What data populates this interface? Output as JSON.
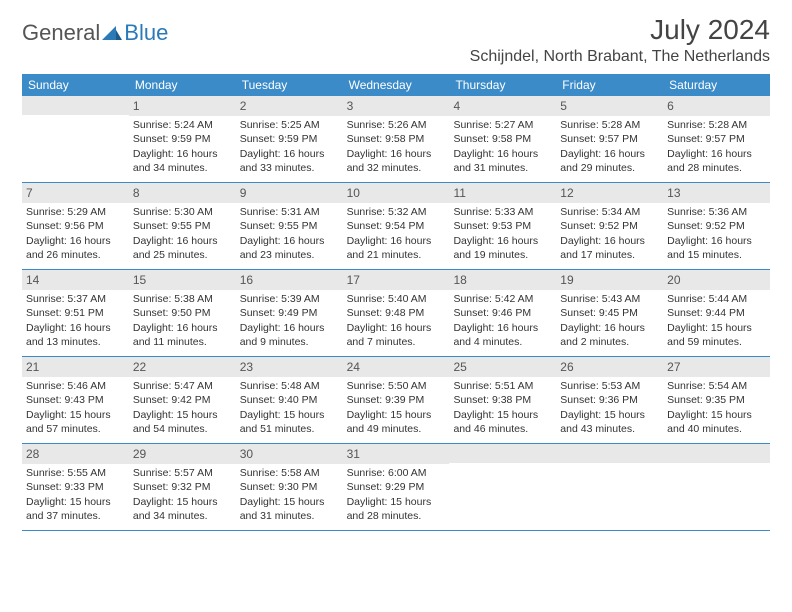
{
  "logo": {
    "general": "General",
    "blue": "Blue"
  },
  "title": {
    "monthYear": "July 2024",
    "location": "Schijndel, North Brabant, The Netherlands"
  },
  "colors": {
    "headerBg": "#3b8bc9",
    "headerText": "#ffffff",
    "dayBarBg": "#e8e8e8",
    "text": "#333333",
    "logoGray": "#555555",
    "logoBlue": "#2a7ab8",
    "border": "#3b8bc9"
  },
  "dayNames": [
    "Sunday",
    "Monday",
    "Tuesday",
    "Wednesday",
    "Thursday",
    "Friday",
    "Saturday"
  ],
  "weeks": [
    [
      {
        "day": "",
        "sunrise": "",
        "sunset": "",
        "daylight": ""
      },
      {
        "day": "1",
        "sunrise": "Sunrise: 5:24 AM",
        "sunset": "Sunset: 9:59 PM",
        "daylight": "Daylight: 16 hours and 34 minutes."
      },
      {
        "day": "2",
        "sunrise": "Sunrise: 5:25 AM",
        "sunset": "Sunset: 9:59 PM",
        "daylight": "Daylight: 16 hours and 33 minutes."
      },
      {
        "day": "3",
        "sunrise": "Sunrise: 5:26 AM",
        "sunset": "Sunset: 9:58 PM",
        "daylight": "Daylight: 16 hours and 32 minutes."
      },
      {
        "day": "4",
        "sunrise": "Sunrise: 5:27 AM",
        "sunset": "Sunset: 9:58 PM",
        "daylight": "Daylight: 16 hours and 31 minutes."
      },
      {
        "day": "5",
        "sunrise": "Sunrise: 5:28 AM",
        "sunset": "Sunset: 9:57 PM",
        "daylight": "Daylight: 16 hours and 29 minutes."
      },
      {
        "day": "6",
        "sunrise": "Sunrise: 5:28 AM",
        "sunset": "Sunset: 9:57 PM",
        "daylight": "Daylight: 16 hours and 28 minutes."
      }
    ],
    [
      {
        "day": "7",
        "sunrise": "Sunrise: 5:29 AM",
        "sunset": "Sunset: 9:56 PM",
        "daylight": "Daylight: 16 hours and 26 minutes."
      },
      {
        "day": "8",
        "sunrise": "Sunrise: 5:30 AM",
        "sunset": "Sunset: 9:55 PM",
        "daylight": "Daylight: 16 hours and 25 minutes."
      },
      {
        "day": "9",
        "sunrise": "Sunrise: 5:31 AM",
        "sunset": "Sunset: 9:55 PM",
        "daylight": "Daylight: 16 hours and 23 minutes."
      },
      {
        "day": "10",
        "sunrise": "Sunrise: 5:32 AM",
        "sunset": "Sunset: 9:54 PM",
        "daylight": "Daylight: 16 hours and 21 minutes."
      },
      {
        "day": "11",
        "sunrise": "Sunrise: 5:33 AM",
        "sunset": "Sunset: 9:53 PM",
        "daylight": "Daylight: 16 hours and 19 minutes."
      },
      {
        "day": "12",
        "sunrise": "Sunrise: 5:34 AM",
        "sunset": "Sunset: 9:52 PM",
        "daylight": "Daylight: 16 hours and 17 minutes."
      },
      {
        "day": "13",
        "sunrise": "Sunrise: 5:36 AM",
        "sunset": "Sunset: 9:52 PM",
        "daylight": "Daylight: 16 hours and 15 minutes."
      }
    ],
    [
      {
        "day": "14",
        "sunrise": "Sunrise: 5:37 AM",
        "sunset": "Sunset: 9:51 PM",
        "daylight": "Daylight: 16 hours and 13 minutes."
      },
      {
        "day": "15",
        "sunrise": "Sunrise: 5:38 AM",
        "sunset": "Sunset: 9:50 PM",
        "daylight": "Daylight: 16 hours and 11 minutes."
      },
      {
        "day": "16",
        "sunrise": "Sunrise: 5:39 AM",
        "sunset": "Sunset: 9:49 PM",
        "daylight": "Daylight: 16 hours and 9 minutes."
      },
      {
        "day": "17",
        "sunrise": "Sunrise: 5:40 AM",
        "sunset": "Sunset: 9:48 PM",
        "daylight": "Daylight: 16 hours and 7 minutes."
      },
      {
        "day": "18",
        "sunrise": "Sunrise: 5:42 AM",
        "sunset": "Sunset: 9:46 PM",
        "daylight": "Daylight: 16 hours and 4 minutes."
      },
      {
        "day": "19",
        "sunrise": "Sunrise: 5:43 AM",
        "sunset": "Sunset: 9:45 PM",
        "daylight": "Daylight: 16 hours and 2 minutes."
      },
      {
        "day": "20",
        "sunrise": "Sunrise: 5:44 AM",
        "sunset": "Sunset: 9:44 PM",
        "daylight": "Daylight: 15 hours and 59 minutes."
      }
    ],
    [
      {
        "day": "21",
        "sunrise": "Sunrise: 5:46 AM",
        "sunset": "Sunset: 9:43 PM",
        "daylight": "Daylight: 15 hours and 57 minutes."
      },
      {
        "day": "22",
        "sunrise": "Sunrise: 5:47 AM",
        "sunset": "Sunset: 9:42 PM",
        "daylight": "Daylight: 15 hours and 54 minutes."
      },
      {
        "day": "23",
        "sunrise": "Sunrise: 5:48 AM",
        "sunset": "Sunset: 9:40 PM",
        "daylight": "Daylight: 15 hours and 51 minutes."
      },
      {
        "day": "24",
        "sunrise": "Sunrise: 5:50 AM",
        "sunset": "Sunset: 9:39 PM",
        "daylight": "Daylight: 15 hours and 49 minutes."
      },
      {
        "day": "25",
        "sunrise": "Sunrise: 5:51 AM",
        "sunset": "Sunset: 9:38 PM",
        "daylight": "Daylight: 15 hours and 46 minutes."
      },
      {
        "day": "26",
        "sunrise": "Sunrise: 5:53 AM",
        "sunset": "Sunset: 9:36 PM",
        "daylight": "Daylight: 15 hours and 43 minutes."
      },
      {
        "day": "27",
        "sunrise": "Sunrise: 5:54 AM",
        "sunset": "Sunset: 9:35 PM",
        "daylight": "Daylight: 15 hours and 40 minutes."
      }
    ],
    [
      {
        "day": "28",
        "sunrise": "Sunrise: 5:55 AM",
        "sunset": "Sunset: 9:33 PM",
        "daylight": "Daylight: 15 hours and 37 minutes."
      },
      {
        "day": "29",
        "sunrise": "Sunrise: 5:57 AM",
        "sunset": "Sunset: 9:32 PM",
        "daylight": "Daylight: 15 hours and 34 minutes."
      },
      {
        "day": "30",
        "sunrise": "Sunrise: 5:58 AM",
        "sunset": "Sunset: 9:30 PM",
        "daylight": "Daylight: 15 hours and 31 minutes."
      },
      {
        "day": "31",
        "sunrise": "Sunrise: 6:00 AM",
        "sunset": "Sunset: 9:29 PM",
        "daylight": "Daylight: 15 hours and 28 minutes."
      },
      {
        "day": "",
        "sunrise": "",
        "sunset": "",
        "daylight": ""
      },
      {
        "day": "",
        "sunrise": "",
        "sunset": "",
        "daylight": ""
      },
      {
        "day": "",
        "sunrise": "",
        "sunset": "",
        "daylight": ""
      }
    ]
  ]
}
